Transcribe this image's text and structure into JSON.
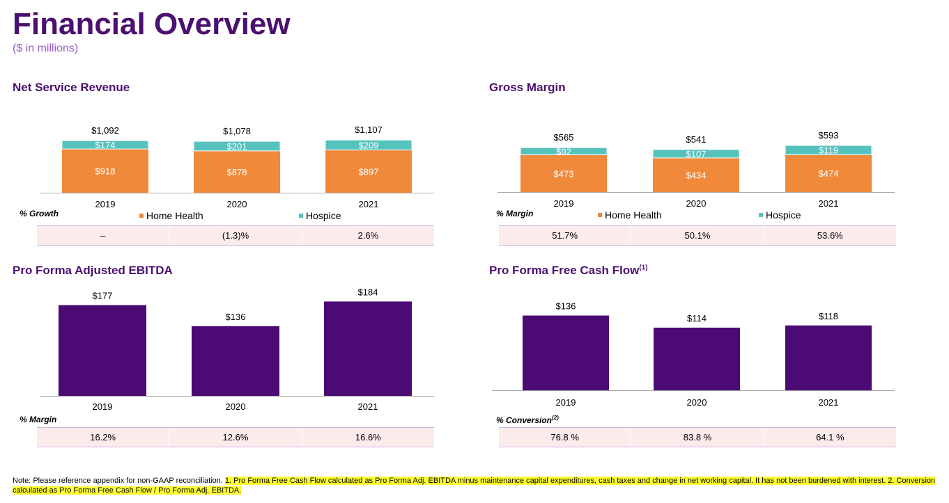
{
  "header": {
    "title": "Financial Overview",
    "subtitle": "($ in millions)"
  },
  "colors": {
    "home_health": "#f0893a",
    "hospice": "#56c2bd",
    "purple": "#4b0a74"
  },
  "panels": {
    "nsr": {
      "title": "Net Service Revenue",
      "metric_label": "% Growth",
      "metrics": [
        "–",
        "(1.3)%",
        "2.6%"
      ],
      "legend": [
        "Home Health",
        "Hospice"
      ]
    },
    "gm": {
      "title": "Gross Margin",
      "metric_label": "% Margin",
      "metrics": [
        "51.7%",
        "50.1%",
        "53.6%"
      ],
      "legend": [
        "Home Health",
        "Hospice"
      ]
    },
    "ebitda": {
      "title": "Pro Forma Adjusted EBITDA",
      "metric_label": "% Margin",
      "metrics": [
        "16.2%",
        "12.6%",
        "16.6%"
      ]
    },
    "fcf": {
      "title": "Pro Forma Free Cash Flow",
      "title_sup": "(1)",
      "metric_label": "% Conversion",
      "metric_sup": "(2)",
      "metrics": [
        "76.8 %",
        "83.8 %",
        "64.1 %"
      ]
    }
  },
  "chart_data": [
    {
      "id": "nsr",
      "type": "bar",
      "stacked": true,
      "categories": [
        "2019",
        "2020",
        "2021"
      ],
      "series": [
        {
          "name": "Home Health",
          "values": [
            918,
            878,
            897
          ],
          "labels": [
            "$918",
            "$878",
            "$897"
          ]
        },
        {
          "name": "Hospice",
          "values": [
            174,
            201,
            209
          ],
          "labels": [
            "$174",
            "$201",
            "$209"
          ]
        }
      ],
      "totals": [
        "$1,092",
        "$1,078",
        "$1,107"
      ]
    },
    {
      "id": "gm",
      "type": "bar",
      "stacked": true,
      "categories": [
        "2019",
        "2020",
        "2021"
      ],
      "series": [
        {
          "name": "Home Health",
          "values": [
            473,
            434,
            474
          ],
          "labels": [
            "$473",
            "$434",
            "$474"
          ]
        },
        {
          "name": "Hospice",
          "values": [
            92,
            107,
            119
          ],
          "labels": [
            "$92",
            "$107",
            "$119"
          ]
        }
      ],
      "totals": [
        "$565",
        "$541",
        "$593"
      ]
    },
    {
      "id": "ebitda",
      "type": "bar",
      "categories": [
        "2019",
        "2020",
        "2021"
      ],
      "values": [
        177,
        136,
        184
      ],
      "labels": [
        "$177",
        "$136",
        "$184"
      ]
    },
    {
      "id": "fcf",
      "type": "bar",
      "categories": [
        "2019",
        "2020",
        "2021"
      ],
      "values": [
        136,
        114,
        118
      ],
      "labels": [
        "$136",
        "$114",
        "$118"
      ]
    }
  ],
  "footnote": {
    "plain": "Note: Please reference appendix for non-GAAP reconciliation. ",
    "highlighted": "1. Pro Forma Free Cash Flow calculated as Pro Forma Adj. EBITDA minus maintenance capital expenditures, cash taxes and change in net working capital. It has not been burdened with interest. 2. Conversion calculated as Pro Forma Free Cash Flow / Pro Forma Adj. EBITDA."
  }
}
